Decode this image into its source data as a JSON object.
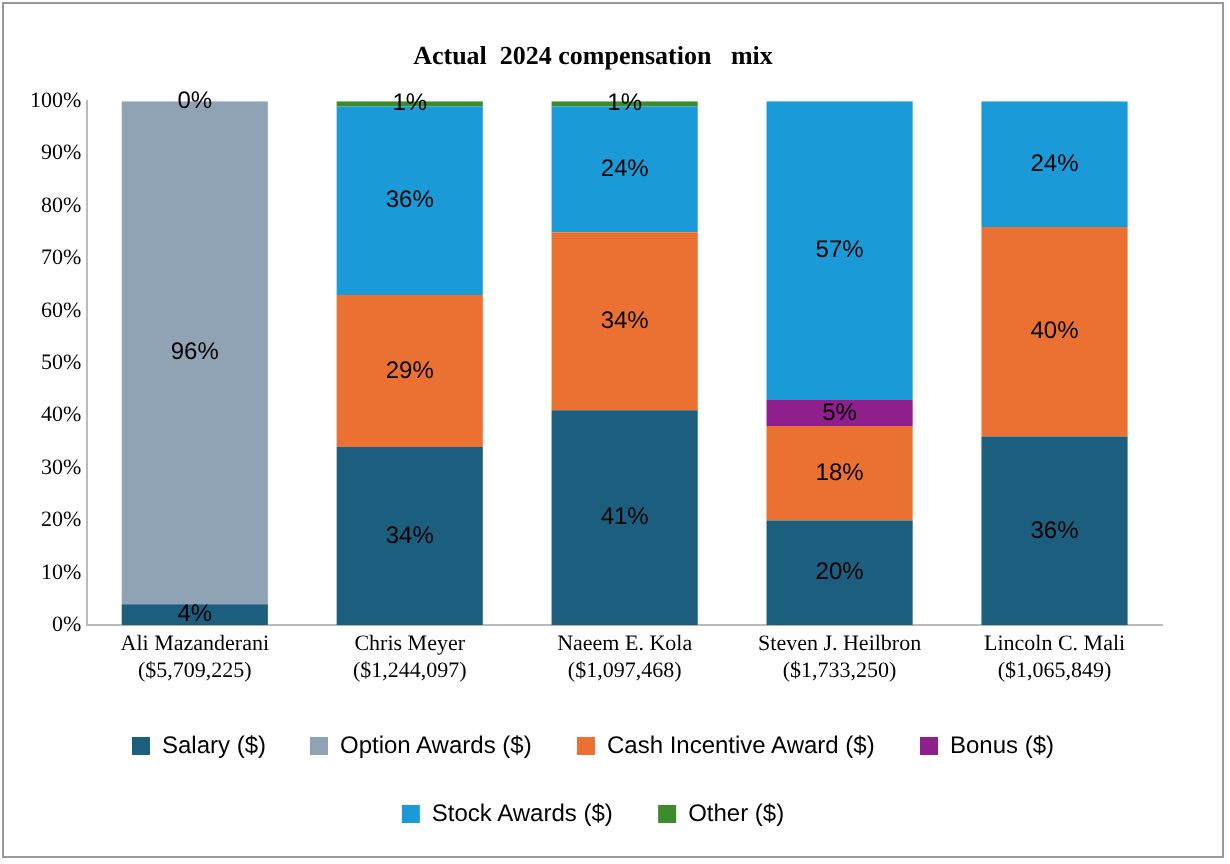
{
  "chart_data": {
    "type": "bar",
    "stacked": true,
    "title": "Actual  2024 compensation   mix",
    "categories": [
      "Ali Mazanderani\n($5,709,225)",
      "Chris Meyer\n($1,244,097)",
      "Naeem E. Kola\n($1,097,468)",
      "Steven J. Heilbron\n($1,733,250)",
      "Lincoln C. Mali\n($1,065,849)"
    ],
    "series": [
      {
        "name": "Salary ($)",
        "color": "#1b5e7e",
        "values": [
          4,
          34,
          41,
          20,
          36
        ],
        "value_labels": [
          "4%",
          "34%",
          "41%",
          "20%",
          "36%"
        ]
      },
      {
        "name": "Option Awards ($)",
        "color": "#8fa3b4",
        "values": [
          96,
          0,
          0,
          0,
          0
        ],
        "value_labels": [
          "96%",
          null,
          null,
          null,
          null
        ]
      },
      {
        "name": "Cash Incentive Award ($)",
        "color": "#ea7131",
        "values": [
          0,
          29,
          34,
          18,
          40
        ],
        "value_labels": [
          null,
          "29%",
          "34%",
          "18%",
          "40%"
        ]
      },
      {
        "name": "Bonus ($)",
        "color": "#8e1f8c",
        "values": [
          0,
          0,
          0,
          5,
          0
        ],
        "value_labels": [
          null,
          null,
          null,
          "5%",
          null
        ]
      },
      {
        "name": "Stock Awards ($)",
        "color": "#1a9bd7",
        "values": [
          0,
          36,
          24,
          57,
          24
        ],
        "value_labels": [
          null,
          "36%",
          "24%",
          "57%",
          "24%"
        ]
      },
      {
        "name": "Other ($)",
        "color": "#3c8c2c",
        "values": [
          0,
          1,
          1,
          0,
          0
        ],
        "value_labels": [
          "0%",
          "1%",
          "1%",
          null,
          null
        ]
      }
    ],
    "ylim": [
      0,
      100
    ],
    "yticks": [
      {
        "value": 0,
        "label": "0%"
      },
      {
        "value": 10,
        "label": "10%"
      },
      {
        "value": 20,
        "label": "20%"
      },
      {
        "value": 30,
        "label": "30%"
      },
      {
        "value": 40,
        "label": "40%"
      },
      {
        "value": 50,
        "label": "50%"
      },
      {
        "value": 60,
        "label": "60%"
      },
      {
        "value": 70,
        "label": "70%"
      },
      {
        "value": 80,
        "label": "80%"
      },
      {
        "value": 90,
        "label": "90%"
      },
      {
        "value": 100,
        "label": "100%"
      }
    ],
    "grid": false,
    "legend": "bottom"
  }
}
